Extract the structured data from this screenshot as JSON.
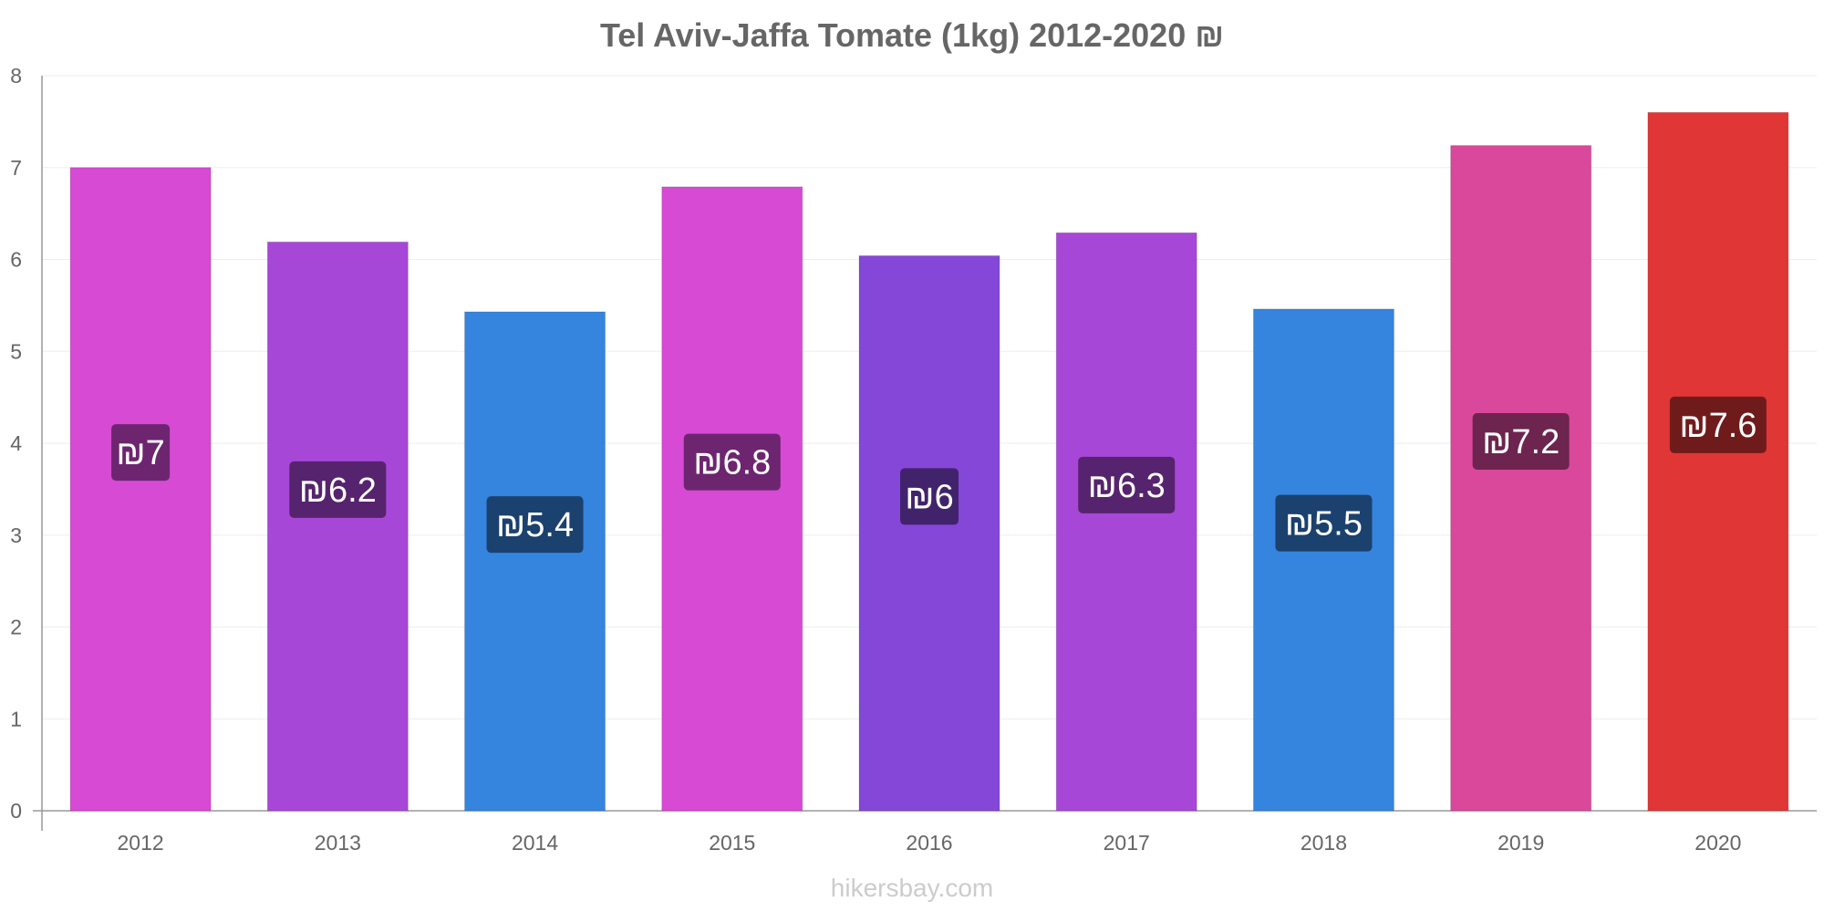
{
  "chart_data": {
    "type": "bar",
    "title": "Tel Aviv-Jaffa Tomate (1kg) 2012-2020 ₪",
    "xlabel": "",
    "ylabel": "",
    "ylim": [
      0,
      8
    ],
    "yticks": [
      "0",
      "1",
      "2",
      "3",
      "4",
      "5",
      "6",
      "7",
      "8"
    ],
    "grid": true,
    "categories": [
      "2012",
      "2013",
      "2014",
      "2015",
      "2016",
      "2017",
      "2018",
      "2019",
      "2020"
    ],
    "values": [
      7.0,
      6.19,
      5.43,
      6.79,
      6.04,
      6.29,
      5.46,
      7.24,
      7.6
    ],
    "data_labels": [
      "₪7",
      "₪6.2",
      "₪5.4",
      "₪6.8",
      "₪6",
      "₪6.3",
      "₪5.5",
      "₪7.2",
      "₪7.6"
    ],
    "bar_colors": [
      "#d64ad4",
      "#a747d8",
      "#3584de",
      "#d64ad4",
      "#8547d8",
      "#a747d8",
      "#3584de",
      "#d9489b",
      "#e03636"
    ],
    "label_colors": [
      "#6d2570",
      "#56236e",
      "#1b416e",
      "#6d2570",
      "#41236b",
      "#56236e",
      "#1b416e",
      "#6d244e",
      "#701b1b"
    ]
  },
  "footer": "hikersbay.com"
}
